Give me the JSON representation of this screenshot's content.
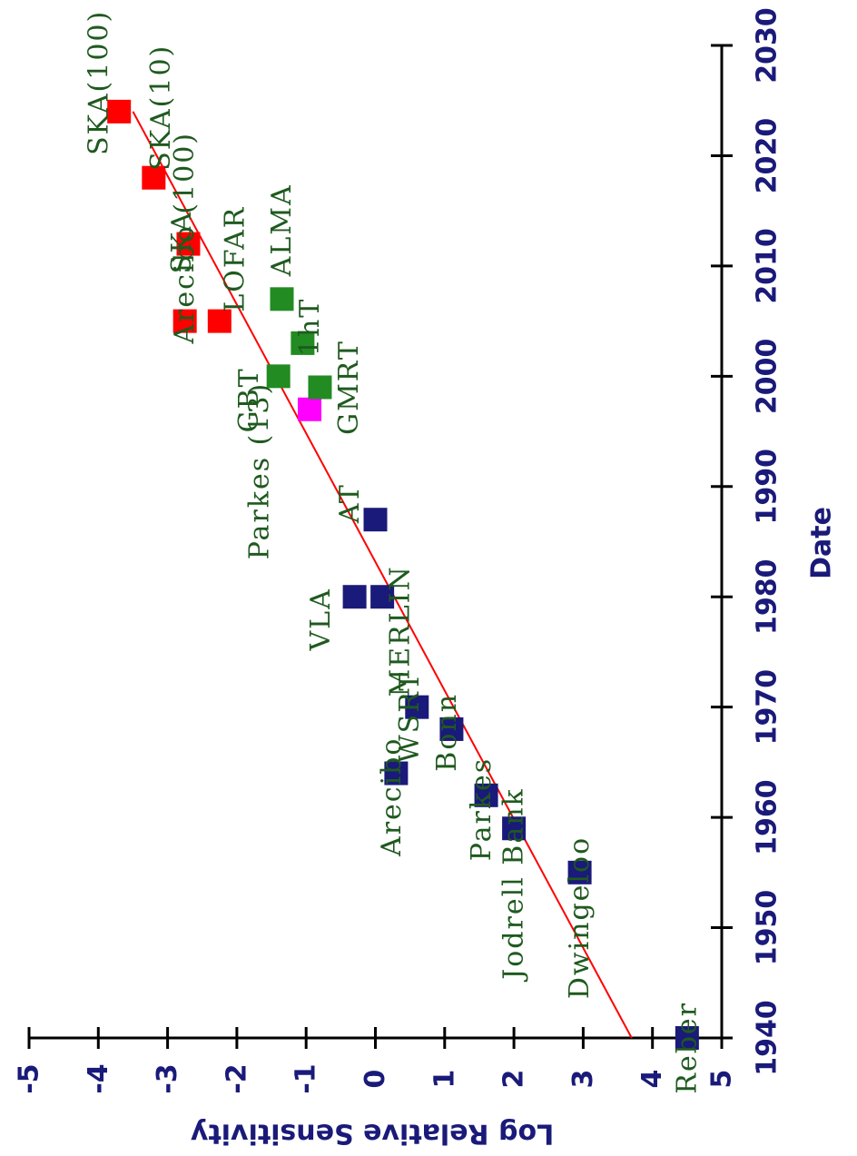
{
  "chart_data": {
    "type": "scatter",
    "title": "",
    "xlabel": "Date",
    "ylabel": "Log Relative Sensitivity",
    "xlim": [
      1940,
      2030
    ],
    "ylim": [
      -5,
      5
    ],
    "x_ticks": [
      "1940",
      "1950",
      "1960",
      "1970",
      "1980",
      "1990",
      "2000",
      "2010",
      "2020",
      "2030"
    ],
    "y_ticks": [
      "-5",
      "-4",
      "-3",
      "-2",
      "-1",
      "0",
      "1",
      "2",
      "3",
      "4",
      "5"
    ],
    "colors": {
      "existing": "#1a1a7a",
      "planned": "#ff0000",
      "recent": "#228b22",
      "upgrade": "#ff00ff",
      "trend": "#ff0000",
      "label": "#1f5a1f",
      "axis": "#000000"
    },
    "points": [
      {
        "label": "Reber",
        "x": 1940,
        "y": 4.5,
        "group": "existing"
      },
      {
        "label": "Dwingeloo",
        "x": 1955,
        "y": 2.95,
        "group": "existing"
      },
      {
        "label": "Jodrell Bank",
        "x": 1959,
        "y": 2.0,
        "group": "existing"
      },
      {
        "label": "Parkes",
        "x": 1962,
        "y": 1.6,
        "group": "existing"
      },
      {
        "label": "Arecibo",
        "x": 1964,
        "y": 0.3,
        "group": "existing"
      },
      {
        "label": "Bonn",
        "x": 1968,
        "y": 1.1,
        "group": "existing"
      },
      {
        "label": "WSRT",
        "x": 1970,
        "y": 0.6,
        "group": "existing"
      },
      {
        "label": "VLA",
        "x": 1980,
        "y": -0.3,
        "group": "existing"
      },
      {
        "label": "MERLIN",
        "x": 1980,
        "y": 0.1,
        "group": "existing"
      },
      {
        "label": "AT",
        "x": 1987,
        "y": 0.0,
        "group": "existing"
      },
      {
        "label": "Parkes (13)",
        "x": 1997,
        "y": -0.95,
        "group": "upgrade"
      },
      {
        "label": "GMRT",
        "x": 1999,
        "y": -0.8,
        "group": "recent"
      },
      {
        "label": "GBT",
        "x": 2000,
        "y": -1.4,
        "group": "recent"
      },
      {
        "label": "1hT",
        "x": 2003,
        "y": -1.05,
        "group": "recent"
      },
      {
        "label": "ALMA",
        "x": 2007,
        "y": -1.35,
        "group": "recent"
      },
      {
        "label": "LOFAR",
        "x": 2005,
        "y": -2.25,
        "group": "planned"
      },
      {
        "label": "Arecibo (100)",
        "x": 2005,
        "y": -2.75,
        "group": "planned"
      },
      {
        "label": "SKA",
        "x": 2012,
        "y": -2.7,
        "group": "planned"
      },
      {
        "label": "SKA(10)",
        "x": 2018,
        "y": -3.2,
        "group": "planned"
      },
      {
        "label": "SKA(100)",
        "x": 2024,
        "y": -3.7,
        "group": "planned"
      }
    ],
    "trend_line": [
      {
        "x": 1940,
        "y": 3.7
      },
      {
        "x": 2024,
        "y": -3.5
      }
    ]
  }
}
